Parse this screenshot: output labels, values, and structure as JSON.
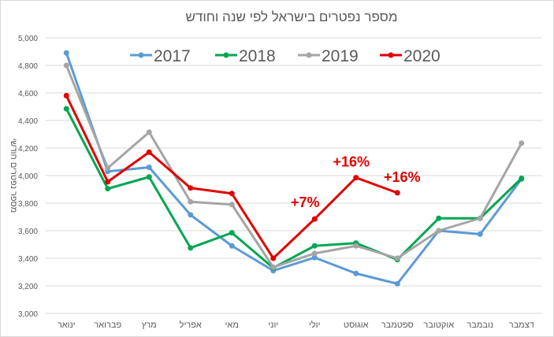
{
  "chart_data": {
    "type": "line",
    "title": "מספר נפטרים בישראל לפי שנה וחודש",
    "ylabel": "מספר נפטרים חודשי",
    "xlabel": "",
    "ylim": [
      3000,
      5000
    ],
    "yticks": [
      3000,
      3200,
      3400,
      3600,
      3800,
      4000,
      4200,
      4400,
      4600,
      4800,
      5000
    ],
    "ytick_labels": [
      "3,000",
      "3,200",
      "3,400",
      "3,600",
      "3,800",
      "4,000",
      "4,200",
      "4,400",
      "4,600",
      "4,800",
      "5,000"
    ],
    "grid": true,
    "legend_position": "top",
    "categories": [
      "ינואר",
      "פברואר",
      "מרץ",
      "אפריל",
      "מאי",
      "יוני",
      "יולי",
      "אוגוסט",
      "ספטמבר",
      "אוקטובר",
      "נובמבר",
      "דצמבר"
    ],
    "series": [
      {
        "name": "2017",
        "color": "#5b9bd5",
        "values": [
          4890,
          4030,
          4060,
          3715,
          3490,
          3310,
          3405,
          3290,
          3215,
          3600,
          3575,
          3975
        ]
      },
      {
        "name": "2018",
        "color": "#00a651",
        "values": [
          4485,
          3905,
          3990,
          3475,
          3585,
          3330,
          3490,
          3510,
          3390,
          3690,
          3690,
          3980
        ]
      },
      {
        "name": "2019",
        "color": "#a5a5a5",
        "values": [
          4800,
          4055,
          4315,
          3810,
          3790,
          3335,
          3435,
          3490,
          3400,
          3600,
          3690,
          4235
        ]
      },
      {
        "name": "2020",
        "color": "#e00000",
        "values": [
          4580,
          3955,
          4170,
          3910,
          3870,
          3400,
          3685,
          3985,
          3875,
          null,
          null,
          null
        ]
      }
    ],
    "annotations": [
      {
        "text": "+7%",
        "series": "2020",
        "category": "יולי"
      },
      {
        "text": "+16%",
        "series": "2020",
        "category": "אוגוסט"
      },
      {
        "text": "+16%",
        "series": "2020",
        "category": "ספטמבר"
      }
    ]
  }
}
